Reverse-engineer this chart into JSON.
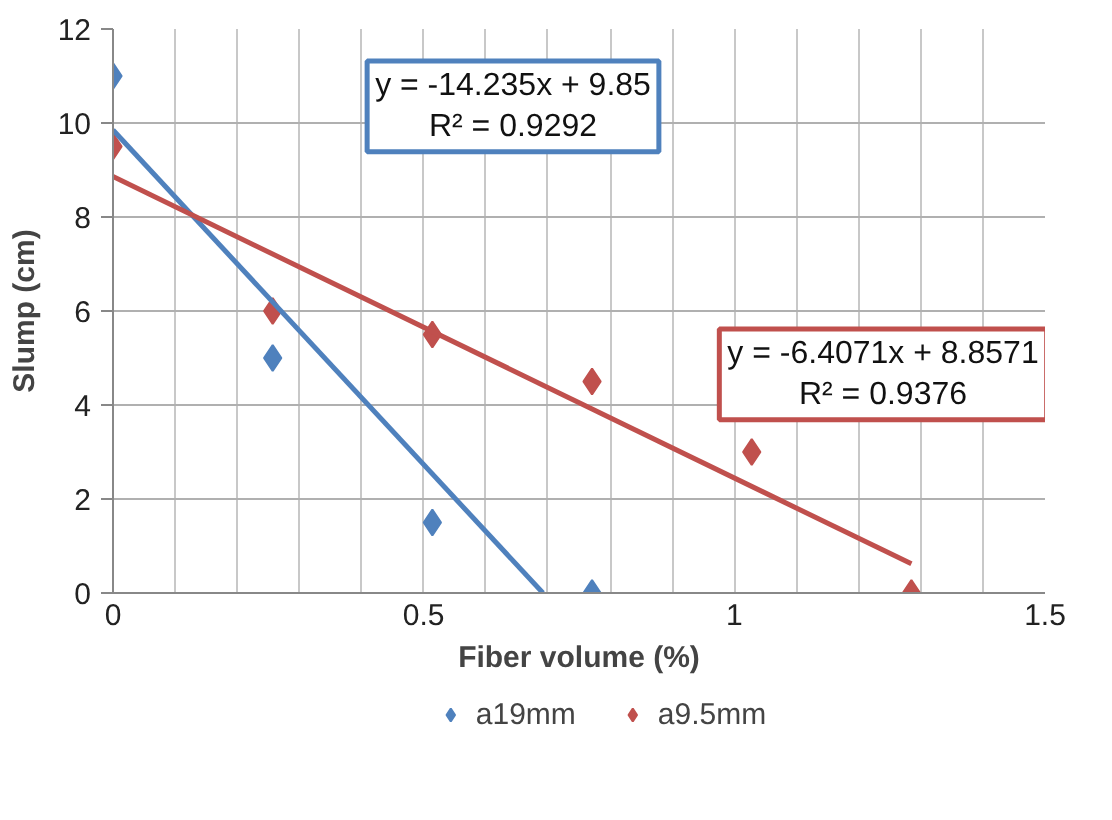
{
  "chart_data": {
    "type": "scatter",
    "xlabel": "Fiber volume (%)",
    "ylabel": "Slump (cm)",
    "series": [
      {
        "name": "a19mm",
        "color": "#4f81bd",
        "marker": "diamond",
        "x": [
          0,
          0.257,
          0.514,
          0.771
        ],
        "values": [
          11,
          5,
          1.5,
          0
        ]
      },
      {
        "name": "a9.5mm",
        "color": "#c0504d",
        "marker": "diamond",
        "x": [
          0,
          0.257,
          0.514,
          0.771,
          1.028,
          1.285
        ],
        "values": [
          9.5,
          6,
          5.5,
          4.5,
          3,
          0
        ]
      },
      {
        "type": "line",
        "color": "#4f81bd",
        "x": [
          0,
          0.692
        ],
        "values": [
          9.85,
          0
        ]
      },
      {
        "type": "line",
        "color": "#c0504d",
        "x": [
          0,
          1.285
        ],
        "values": [
          8.86,
          0.62
        ]
      }
    ],
    "annotations": [
      "y = -14.235x + 9.85\nR² = 0.9292",
      "y = -6.4071x + 8.8571\nR² = 0.9376"
    ],
    "xlim": [
      0,
      1.5
    ],
    "ylim": [
      0,
      12
    ],
    "xticks": [
      0,
      {
        "value": 0.1,
        "label": null
      },
      {
        "value": 0.2,
        "label": null
      },
      {
        "value": 0.3,
        "label": null
      },
      {
        "value": 0.4,
        "label": null
      },
      0.5,
      {
        "value": 0.6,
        "label": null
      },
      {
        "value": 0.7,
        "label": null
      },
      {
        "value": 0.8,
        "label": null
      },
      {
        "value": 0.9,
        "label": null
      },
      1,
      {
        "value": 1.1,
        "label": null
      },
      {
        "value": 1.2,
        "label": null
      },
      {
        "value": 1.3,
        "label": null
      },
      {
        "value": 1.4,
        "label": null
      },
      1.5
    ],
    "yticks": [
      0,
      2,
      4,
      6,
      8,
      10,
      12
    ],
    "grid": true,
    "legend": "bottom"
  }
}
